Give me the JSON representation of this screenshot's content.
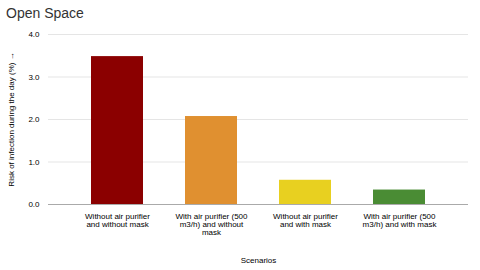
{
  "chart_data": {
    "type": "bar",
    "title": "Open Space",
    "xlabel": "Scenarios",
    "ylabel": "Risk of infection during the day (%)",
    "categories": [
      "Without air purifier\nand without mask",
      "With air purifier (500\nm3/h) and without\nmask",
      "Without air purifier\nand with mask",
      "With air purifier (500\nm3/h) and with mask"
    ],
    "values": [
      3.48,
      2.07,
      0.57,
      0.34
    ],
    "colors": [
      "#8B0000",
      "#E09030",
      "#E8D020",
      "#4A8C34"
    ],
    "ylim": [
      0,
      4
    ],
    "yticks": [
      0,
      1,
      2,
      3,
      4
    ],
    "grid": true
  }
}
